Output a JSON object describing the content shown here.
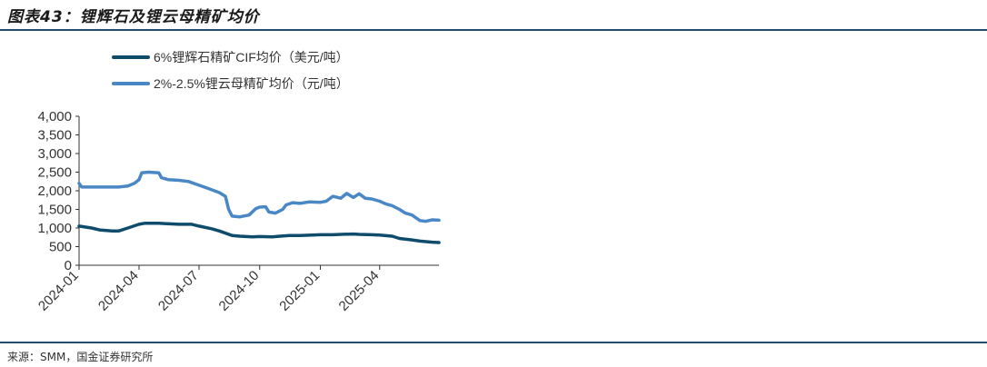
{
  "title": "图表43：锂辉石及锂云母精矿均价",
  "source": "来源：SMM，国金证券研究所",
  "colors": {
    "series1": "#0f4c6b",
    "series2": "#4a87c5",
    "axis": "#333333",
    "rule": "#1f4e6e"
  },
  "chart_data": {
    "type": "line",
    "title": "",
    "xlabel": "",
    "ylabel": "",
    "ylim": [
      0,
      4000
    ],
    "yticks": [
      "0",
      "500",
      "1,000",
      "1,500",
      "2,000",
      "2,500",
      "3,000",
      "3,500",
      "4,000"
    ],
    "xticks": [
      "2024-01",
      "2024-04",
      "2024-07",
      "2024-10",
      "2025-01",
      "2025-04"
    ],
    "xrange": [
      "2024-01-01",
      "2025-06-30"
    ],
    "grid": false,
    "legend_position": "top-left",
    "series": [
      {
        "name": "6%锂辉石精矿CIF均价（美元/吨）",
        "points": [
          [
            "2024-01-01",
            1050
          ],
          [
            "2024-01-20",
            1000
          ],
          [
            "2024-02-01",
            950
          ],
          [
            "2024-02-20",
            920
          ],
          [
            "2024-03-01",
            920
          ],
          [
            "2024-03-15",
            1000
          ],
          [
            "2024-04-01",
            1100
          ],
          [
            "2024-04-10",
            1130
          ],
          [
            "2024-05-01",
            1130
          ],
          [
            "2024-05-10",
            1120
          ],
          [
            "2024-06-01",
            1100
          ],
          [
            "2024-06-20",
            1100
          ],
          [
            "2024-07-01",
            1050
          ],
          [
            "2024-07-20",
            980
          ],
          [
            "2024-08-01",
            920
          ],
          [
            "2024-08-20",
            800
          ],
          [
            "2024-09-01",
            780
          ],
          [
            "2024-09-20",
            760
          ],
          [
            "2024-10-01",
            770
          ],
          [
            "2024-10-20",
            760
          ],
          [
            "2024-11-01",
            780
          ],
          [
            "2024-11-15",
            800
          ],
          [
            "2024-12-01",
            800
          ],
          [
            "2024-12-20",
            810
          ],
          [
            "2025-01-01",
            820
          ],
          [
            "2025-01-20",
            820
          ],
          [
            "2025-02-01",
            830
          ],
          [
            "2025-02-20",
            840
          ],
          [
            "2025-03-01",
            830
          ],
          [
            "2025-03-20",
            820
          ],
          [
            "2025-04-01",
            810
          ],
          [
            "2025-04-20",
            780
          ],
          [
            "2025-05-01",
            720
          ],
          [
            "2025-05-20",
            680
          ],
          [
            "2025-06-01",
            650
          ],
          [
            "2025-06-20",
            620
          ],
          [
            "2025-06-30",
            610
          ]
        ]
      },
      {
        "name": "2%-2.5%锂云母精矿均价（元/吨）",
        "points": [
          [
            "2024-01-01",
            2200
          ],
          [
            "2024-01-05",
            2100
          ],
          [
            "2024-01-20",
            2100
          ],
          [
            "2024-02-01",
            2100
          ],
          [
            "2024-02-20",
            2100
          ],
          [
            "2024-03-01",
            2100
          ],
          [
            "2024-03-15",
            2130
          ],
          [
            "2024-03-25",
            2200
          ],
          [
            "2024-04-01",
            2300
          ],
          [
            "2024-04-05",
            2480
          ],
          [
            "2024-04-15",
            2500
          ],
          [
            "2024-05-01",
            2480
          ],
          [
            "2024-05-05",
            2350
          ],
          [
            "2024-05-15",
            2300
          ],
          [
            "2024-06-01",
            2280
          ],
          [
            "2024-06-15",
            2250
          ],
          [
            "2024-07-01",
            2150
          ],
          [
            "2024-07-15",
            2060
          ],
          [
            "2024-08-01",
            1950
          ],
          [
            "2024-08-10",
            1850
          ],
          [
            "2024-08-15",
            1500
          ],
          [
            "2024-08-20",
            1320
          ],
          [
            "2024-09-01",
            1300
          ],
          [
            "2024-09-15",
            1350
          ],
          [
            "2024-09-25",
            1520
          ],
          [
            "2024-10-01",
            1560
          ],
          [
            "2024-10-10",
            1570
          ],
          [
            "2024-10-15",
            1430
          ],
          [
            "2024-10-25",
            1400
          ],
          [
            "2024-11-05",
            1500
          ],
          [
            "2024-11-10",
            1620
          ],
          [
            "2024-11-20",
            1680
          ],
          [
            "2024-12-01",
            1660
          ],
          [
            "2024-12-15",
            1700
          ],
          [
            "2025-01-01",
            1690
          ],
          [
            "2025-01-10",
            1720
          ],
          [
            "2025-01-20",
            1850
          ],
          [
            "2025-02-01",
            1800
          ],
          [
            "2025-02-10",
            1930
          ],
          [
            "2025-02-20",
            1820
          ],
          [
            "2025-03-01",
            1920
          ],
          [
            "2025-03-10",
            1800
          ],
          [
            "2025-03-20",
            1780
          ],
          [
            "2025-04-01",
            1720
          ],
          [
            "2025-04-10",
            1650
          ],
          [
            "2025-04-20",
            1600
          ],
          [
            "2025-05-01",
            1500
          ],
          [
            "2025-05-10",
            1400
          ],
          [
            "2025-05-20",
            1350
          ],
          [
            "2025-06-01",
            1200
          ],
          [
            "2025-06-10",
            1180
          ],
          [
            "2025-06-20",
            1220
          ],
          [
            "2025-06-30",
            1210
          ]
        ]
      }
    ]
  }
}
